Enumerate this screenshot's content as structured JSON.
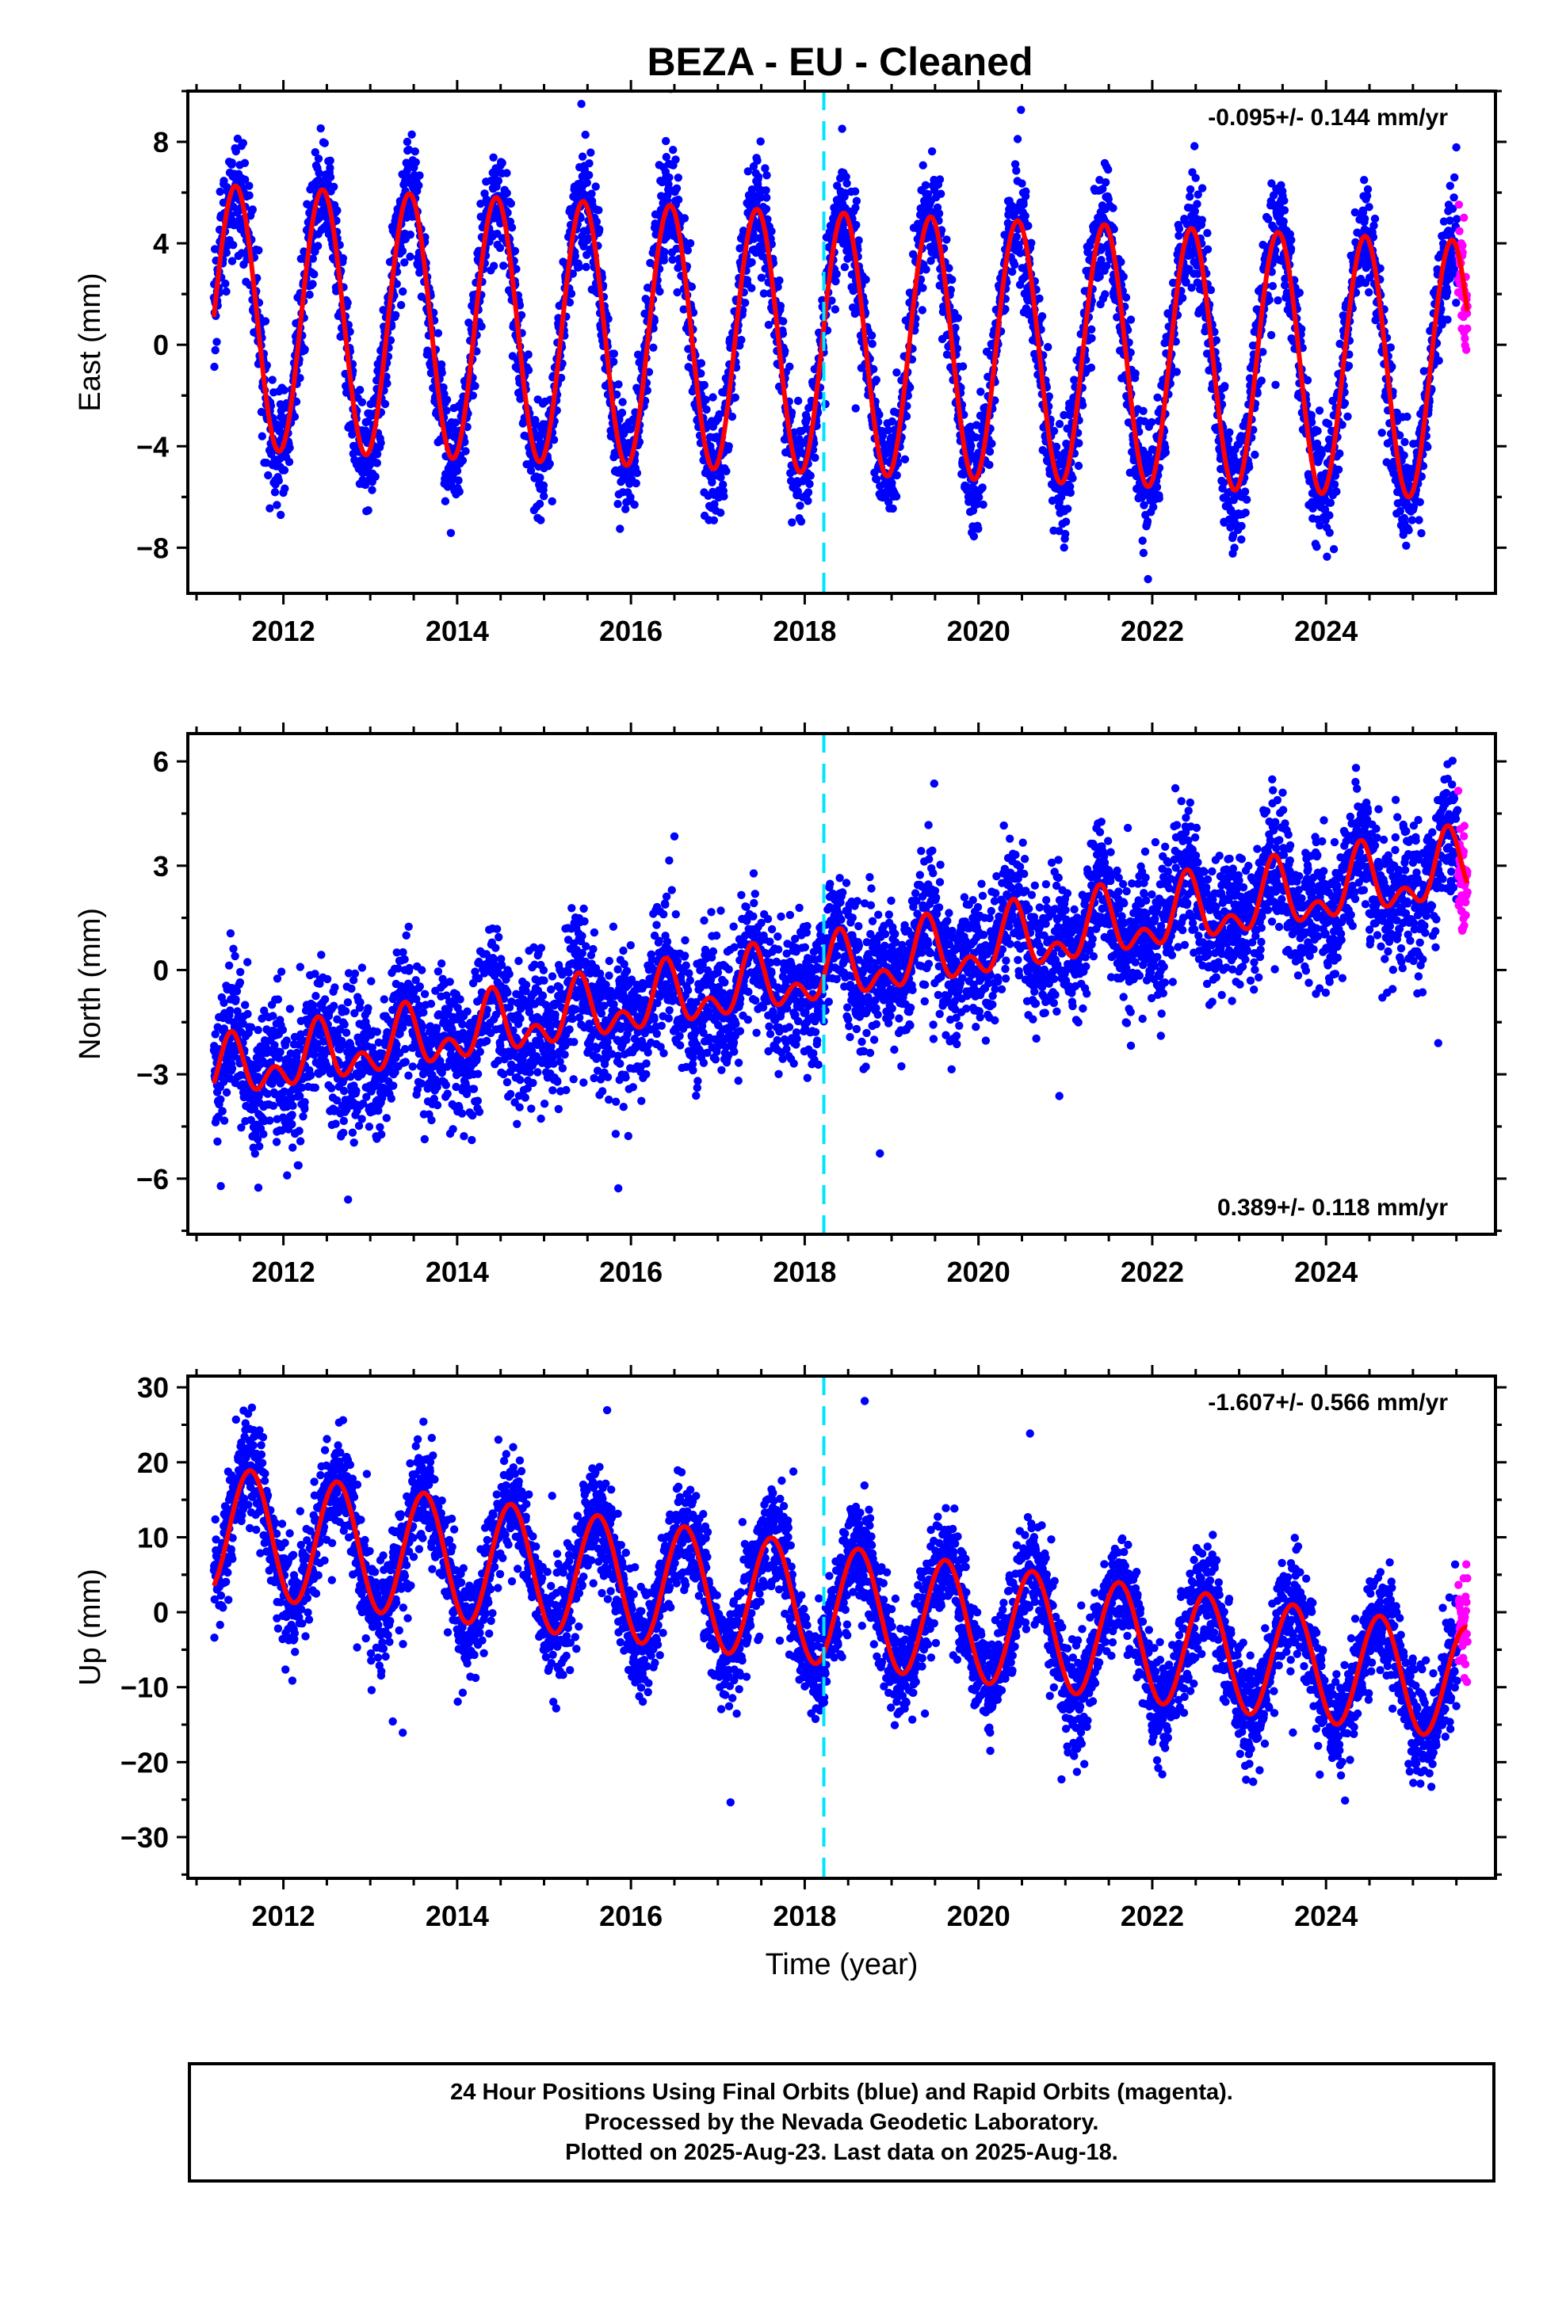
{
  "title": "BEZA  - EU - Cleaned",
  "footer": {
    "line1": "24 Hour Positions Using Final Orbits (blue) and Rapid Orbits (magenta).",
    "line2": "Processed by the Nevada Geodetic Laboratory.",
    "line3": "Plotted on 2025-Aug-23. Last data on 2025-Aug-18."
  },
  "colors": {
    "final_orbits": "#0000ff",
    "rapid_orbits": "#ff00ff",
    "model_fit": "#ff0000",
    "equipment_change": "#00e5ff",
    "frame": "#000000"
  },
  "chart_data": [
    {
      "type": "scatter",
      "name": "east",
      "ylabel": "East (mm)",
      "xlabel": "",
      "xlim": [
        2010.9,
        2025.95
      ],
      "ylim": [
        -9.8,
        10.0
      ],
      "xticks": [
        2012,
        2014,
        2016,
        2018,
        2020,
        2022,
        2024
      ],
      "yticks": [
        -8,
        -4,
        0,
        4,
        8
      ],
      "rate_label": "-0.095+/- 0.144 mm/yr",
      "rate_label_position": "top-right",
      "x_start": 2011.2,
      "x_final_end": 2025.52,
      "x_end": 2025.63,
      "trend_mm_per_yr": -0.095,
      "model": {
        "annual_amplitude_start": 5.2,
        "annual_amplitude_end": 5.1,
        "annual_phase_peak": 0.45,
        "semiannual_amplitude": 0.0,
        "offset_start": 1.1,
        "offset_end": -1.0
      },
      "noise_sigma": 1.1,
      "equipment_change_x": 2018.22
    },
    {
      "type": "scatter",
      "name": "north",
      "ylabel": "North (mm)",
      "xlabel": "",
      "xlim": [
        2010.9,
        2025.95
      ],
      "ylim": [
        -7.6,
        6.8
      ],
      "xticks": [
        2012,
        2014,
        2016,
        2018,
        2020,
        2022,
        2024
      ],
      "yticks": [
        -6,
        -3,
        0,
        3,
        6
      ],
      "rate_label": "0.389+/- 0.118 mm/yr",
      "rate_label_position": "bottom-right",
      "x_start": 2011.2,
      "x_final_end": 2025.52,
      "x_end": 2025.63,
      "trend_mm_per_yr": 0.389,
      "model": {
        "annual_amplitude_start": 0.6,
        "annual_amplitude_end": 0.8,
        "annual_phase_peak": 0.4,
        "semiannual_amplitude": 0.55,
        "offset_start": -3.0,
        "offset_end": 2.9
      },
      "noise_sigma": 0.95,
      "equipment_change_x": 2018.22
    },
    {
      "type": "scatter",
      "name": "up",
      "ylabel": "Up (mm)",
      "xlabel": "Time (year)",
      "xlim": [
        2010.9,
        2025.95
      ],
      "ylim": [
        -35.5,
        31.5
      ],
      "xticks": [
        2012,
        2014,
        2016,
        2018,
        2020,
        2022,
        2024
      ],
      "yticks": [
        -30,
        -20,
        -10,
        0,
        10,
        20,
        30
      ],
      "rate_label": "-1.607+/- 0.566 mm/yr",
      "rate_label_position": "top-right",
      "x_start": 2011.2,
      "x_final_end": 2025.52,
      "x_end": 2025.63,
      "trend_mm_per_yr": -1.607,
      "model": {
        "annual_amplitude_start": 8.5,
        "annual_amplitude_end": 7.5,
        "annual_phase_peak": 0.62,
        "semiannual_amplitude": 0.0,
        "offset_start": 11.0,
        "offset_end": -9.5
      },
      "noise_sigma": 3.6,
      "equipment_change_x": 2018.22
    }
  ]
}
